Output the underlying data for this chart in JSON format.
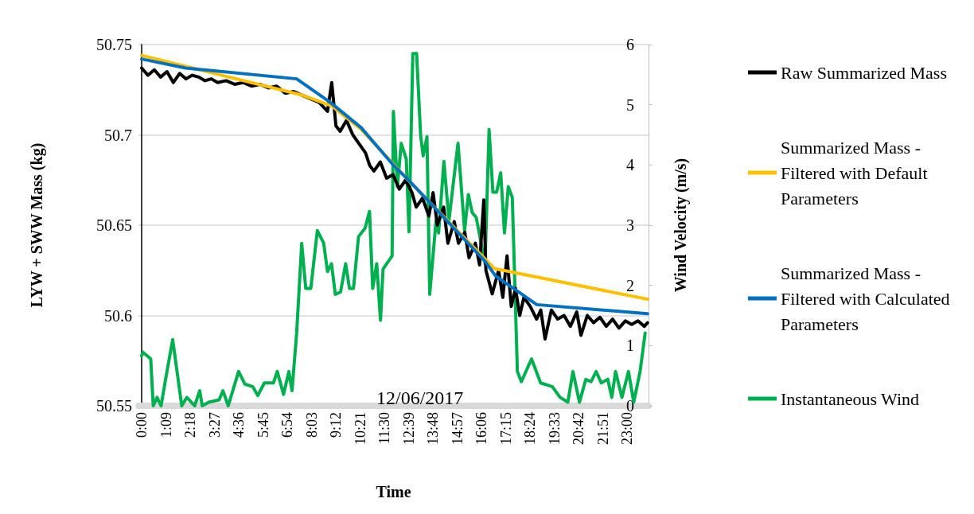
{
  "chart_data": {
    "type": "line",
    "xlabel": "Time",
    "ylabel": "LYW + SWW Mass (kg)",
    "y2label": "Wind Velocity (m/s)",
    "annotations": [
      "12/06/2017"
    ],
    "xlim": [
      -0.15,
      24
    ],
    "xticks": [
      {
        "value": 0,
        "label": "0:00"
      },
      {
        "value": 1.15,
        "label": "1:09"
      },
      {
        "value": 2.3,
        "label": "2:18"
      },
      {
        "value": 3.45,
        "label": "3:27"
      },
      {
        "value": 4.6,
        "label": "4:36"
      },
      {
        "value": 5.75,
        "label": "5:45"
      },
      {
        "value": 6.9,
        "label": "6:54"
      },
      {
        "value": 8.05,
        "label": "8:03"
      },
      {
        "value": 9.2,
        "label": "9:12"
      },
      {
        "value": 10.35,
        "label": "10:21"
      },
      {
        "value": 11.5,
        "label": "11:30"
      },
      {
        "value": 12.65,
        "label": "12:39"
      },
      {
        "value": 13.8,
        "label": "13:48"
      },
      {
        "value": 14.95,
        "label": "14:57"
      },
      {
        "value": 16.1,
        "label": "16:06"
      },
      {
        "value": 17.25,
        "label": "17:15"
      },
      {
        "value": 18.4,
        "label": "18:24"
      },
      {
        "value": 19.55,
        "label": "19:33"
      },
      {
        "value": 20.7,
        "label": "20:42"
      },
      {
        "value": 21.85,
        "label": "21:51"
      },
      {
        "value": 23,
        "label": "23:00"
      }
    ],
    "ylim": [
      50.55,
      50.75
    ],
    "yticks": [
      50.55,
      50.6,
      50.65,
      50.7,
      50.75
    ],
    "y2lim": [
      0,
      6
    ],
    "y2ticks": [
      0,
      1,
      2,
      3,
      4,
      5,
      6
    ],
    "grid": "y",
    "legend": "right",
    "marker": "none",
    "line_style": "solid",
    "series": [
      {
        "name": "Raw Summarized Mass",
        "color": "#000000",
        "x": [
          0,
          0.3,
          0.6,
          0.9,
          1.2,
          1.5,
          1.8,
          2.1,
          2.4,
          2.7,
          3.0,
          3.3,
          3.6,
          4.0,
          4.4,
          4.8,
          5.2,
          5.6,
          6.0,
          6.4,
          6.8,
          7.2,
          7.6,
          8.0,
          8.4,
          8.8,
          9.0,
          9.2,
          9.4,
          9.7,
          10.0,
          10.3,
          10.6,
          10.8,
          11.0,
          11.3,
          11.6,
          11.9,
          12.2,
          12.5,
          12.8,
          13.0,
          13.3,
          13.6,
          13.8,
          14.0,
          14.3,
          14.5,
          14.8,
          15.0,
          15.3,
          15.5,
          15.8,
          16.0,
          16.2,
          16.3,
          16.6,
          16.9,
          17.1,
          17.3,
          17.5,
          17.7,
          17.9,
          18.1,
          18.4,
          18.7,
          18.9,
          19.1,
          19.4,
          19.7,
          20.0,
          20.3,
          20.6,
          20.8,
          21.1,
          21.4,
          21.7,
          22.0,
          22.3,
          22.6,
          22.9,
          23.2,
          23.5,
          23.8,
          23.95
        ],
        "values": [
          50.737,
          50.733,
          50.736,
          50.732,
          50.735,
          50.729,
          50.734,
          50.731,
          50.733,
          50.732,
          50.73,
          50.731,
          50.729,
          50.73,
          50.728,
          50.729,
          50.727,
          50.728,
          50.726,
          50.727,
          50.723,
          50.724,
          50.722,
          50.72,
          50.718,
          50.713,
          50.729,
          50.705,
          50.702,
          50.708,
          50.7,
          50.695,
          50.69,
          50.683,
          50.68,
          50.685,
          50.676,
          50.678,
          50.67,
          50.675,
          50.668,
          50.66,
          50.665,
          50.655,
          50.668,
          50.65,
          50.66,
          50.64,
          50.652,
          50.64,
          50.646,
          50.632,
          50.64,
          50.628,
          50.664,
          50.625,
          50.612,
          50.625,
          50.61,
          50.633,
          50.605,
          50.615,
          50.6,
          50.61,
          50.605,
          50.598,
          50.603,
          50.587,
          50.603,
          50.598,
          50.6,
          50.594,
          50.602,
          50.589,
          50.6,
          50.596,
          50.599,
          50.594,
          50.598,
          50.593,
          50.597,
          50.595,
          50.597,
          50.594,
          50.596
        ]
      },
      {
        "name": "Summarized Mass - Filtered with Default Parameters",
        "color": "#ffc000",
        "x": [
          0,
          7.6,
          9.0,
          10.4,
          11.9,
          12.7,
          16.7,
          23.95
        ],
        "values": [
          50.744,
          50.722,
          50.716,
          50.703,
          50.684,
          50.674,
          50.626,
          50.609
        ]
      },
      {
        "name": "Summarized Mass - Filtered with Calculated Parameters",
        "color": "#0070c0",
        "x": [
          0,
          2.08,
          7.34,
          8.93,
          10.39,
          11.86,
          12.72,
          16.26,
          16.75,
          18.71,
          23.95
        ],
        "values": [
          50.742,
          50.737,
          50.731,
          50.718,
          50.704,
          50.684,
          50.674,
          50.63,
          50.622,
          50.606,
          50.601
        ]
      },
      {
        "name": "Instantaneous Wind",
        "color": "#00b050",
        "axis": "y2",
        "x": [
          0,
          0.06,
          0.43,
          0.55,
          0.73,
          0.92,
          1.16,
          1.47,
          1.9,
          2.14,
          2.51,
          2.75,
          2.87,
          3.18,
          3.67,
          3.85,
          4.1,
          4.59,
          4.89,
          5.26,
          5.5,
          5.81,
          6.24,
          6.42,
          6.72,
          6.97,
          7.12,
          7.34,
          7.58,
          7.77,
          8.01,
          8.32,
          8.62,
          8.8,
          8.99,
          9.17,
          9.42,
          9.66,
          9.84,
          10.03,
          10.27,
          10.58,
          10.79,
          10.94,
          11.13,
          11.31,
          11.43,
          11.86,
          11.92,
          12.11,
          12.29,
          12.53,
          12.66,
          12.84,
          13.02,
          13.21,
          13.33,
          13.51,
          13.64,
          13.94,
          14.06,
          14.31,
          14.55,
          14.98,
          15.29,
          15.47,
          15.65,
          15.84,
          16.26,
          16.45,
          16.63,
          16.81,
          17.0,
          17.18,
          17.36,
          17.55,
          17.79,
          17.98,
          18.46,
          18.89,
          19.44,
          19.81,
          20.18,
          20.42,
          20.73,
          21.03,
          21.28,
          21.52,
          21.76,
          22.07,
          22.26,
          22.44,
          22.74,
          23.05,
          23.3,
          23.6,
          23.84
        ],
        "values": [
          0.83,
          0.89,
          0.78,
          0,
          0.14,
          0,
          0.49,
          1.1,
          0,
          0.14,
          0,
          0.25,
          0,
          0.06,
          0.1,
          0.25,
          0,
          0.57,
          0.36,
          0.32,
          0.17,
          0.38,
          0.38,
          0.57,
          0.19,
          0.57,
          0.25,
          1.21,
          2.7,
          1.95,
          1.95,
          2.91,
          2.7,
          2.23,
          2.36,
          1.85,
          1.89,
          2.36,
          1.95,
          1.95,
          2.81,
          2.95,
          3.23,
          1.95,
          2.36,
          1.42,
          2.27,
          2.49,
          4.89,
          3.64,
          4.36,
          4.1,
          2.89,
          5.85,
          5.85,
          4.49,
          4.15,
          4.47,
          1.85,
          3.08,
          2.87,
          4.06,
          3.08,
          4.36,
          2.91,
          3.51,
          3.21,
          3.13,
          2.36,
          4.59,
          3.55,
          3.55,
          3.87,
          2.87,
          3.64,
          3.46,
          0.57,
          0.4,
          0.78,
          0.38,
          0.32,
          0.14,
          0.06,
          0.57,
          0.06,
          0.44,
          0.4,
          0.57,
          0.38,
          0.44,
          0.14,
          0.57,
          0.14,
          0.57,
          0.06,
          0.57,
          1.21
        ]
      }
    ]
  }
}
